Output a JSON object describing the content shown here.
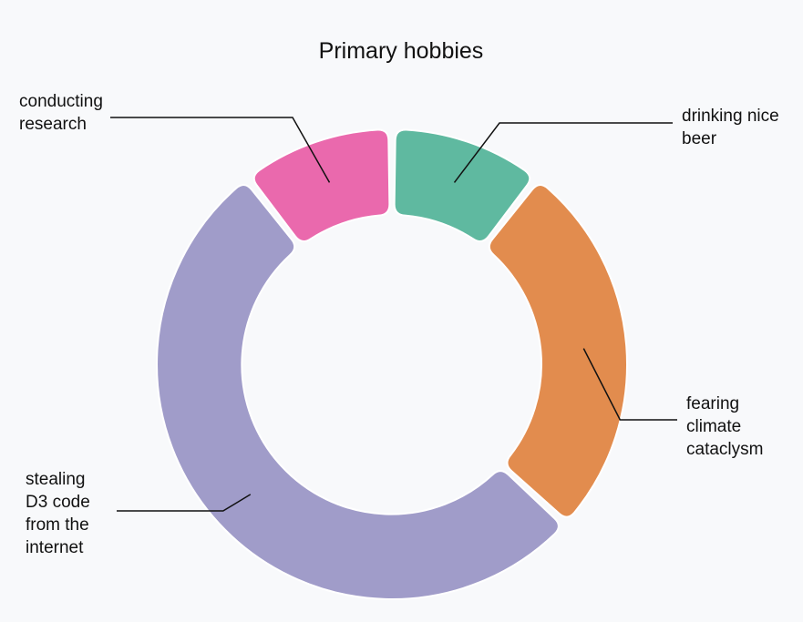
{
  "chart_data": {
    "type": "pie",
    "title": "Primary hobbies",
    "donut": true,
    "categories": [
      "drinking nice beer",
      "fearing climate cataclysm",
      "stealing D3 code from the internet",
      "conducting research"
    ],
    "values": [
      10,
      25,
      50,
      10
    ],
    "colors": [
      "#5fb9a0",
      "#e28c4e",
      "#a09cc9",
      "#ea69ad"
    ],
    "labels": [
      {
        "lines": [
          "drinking nice",
          "beer"
        ],
        "side": "right"
      },
      {
        "lines": [
          "fearing",
          "climate",
          "cataclysm"
        ],
        "side": "right"
      },
      {
        "lines": [
          "stealing",
          "D3 code",
          "from the",
          "internet"
        ],
        "side": "left"
      },
      {
        "lines": [
          "conducting",
          "research"
        ],
        "side": "left"
      }
    ],
    "legend": "none"
  }
}
